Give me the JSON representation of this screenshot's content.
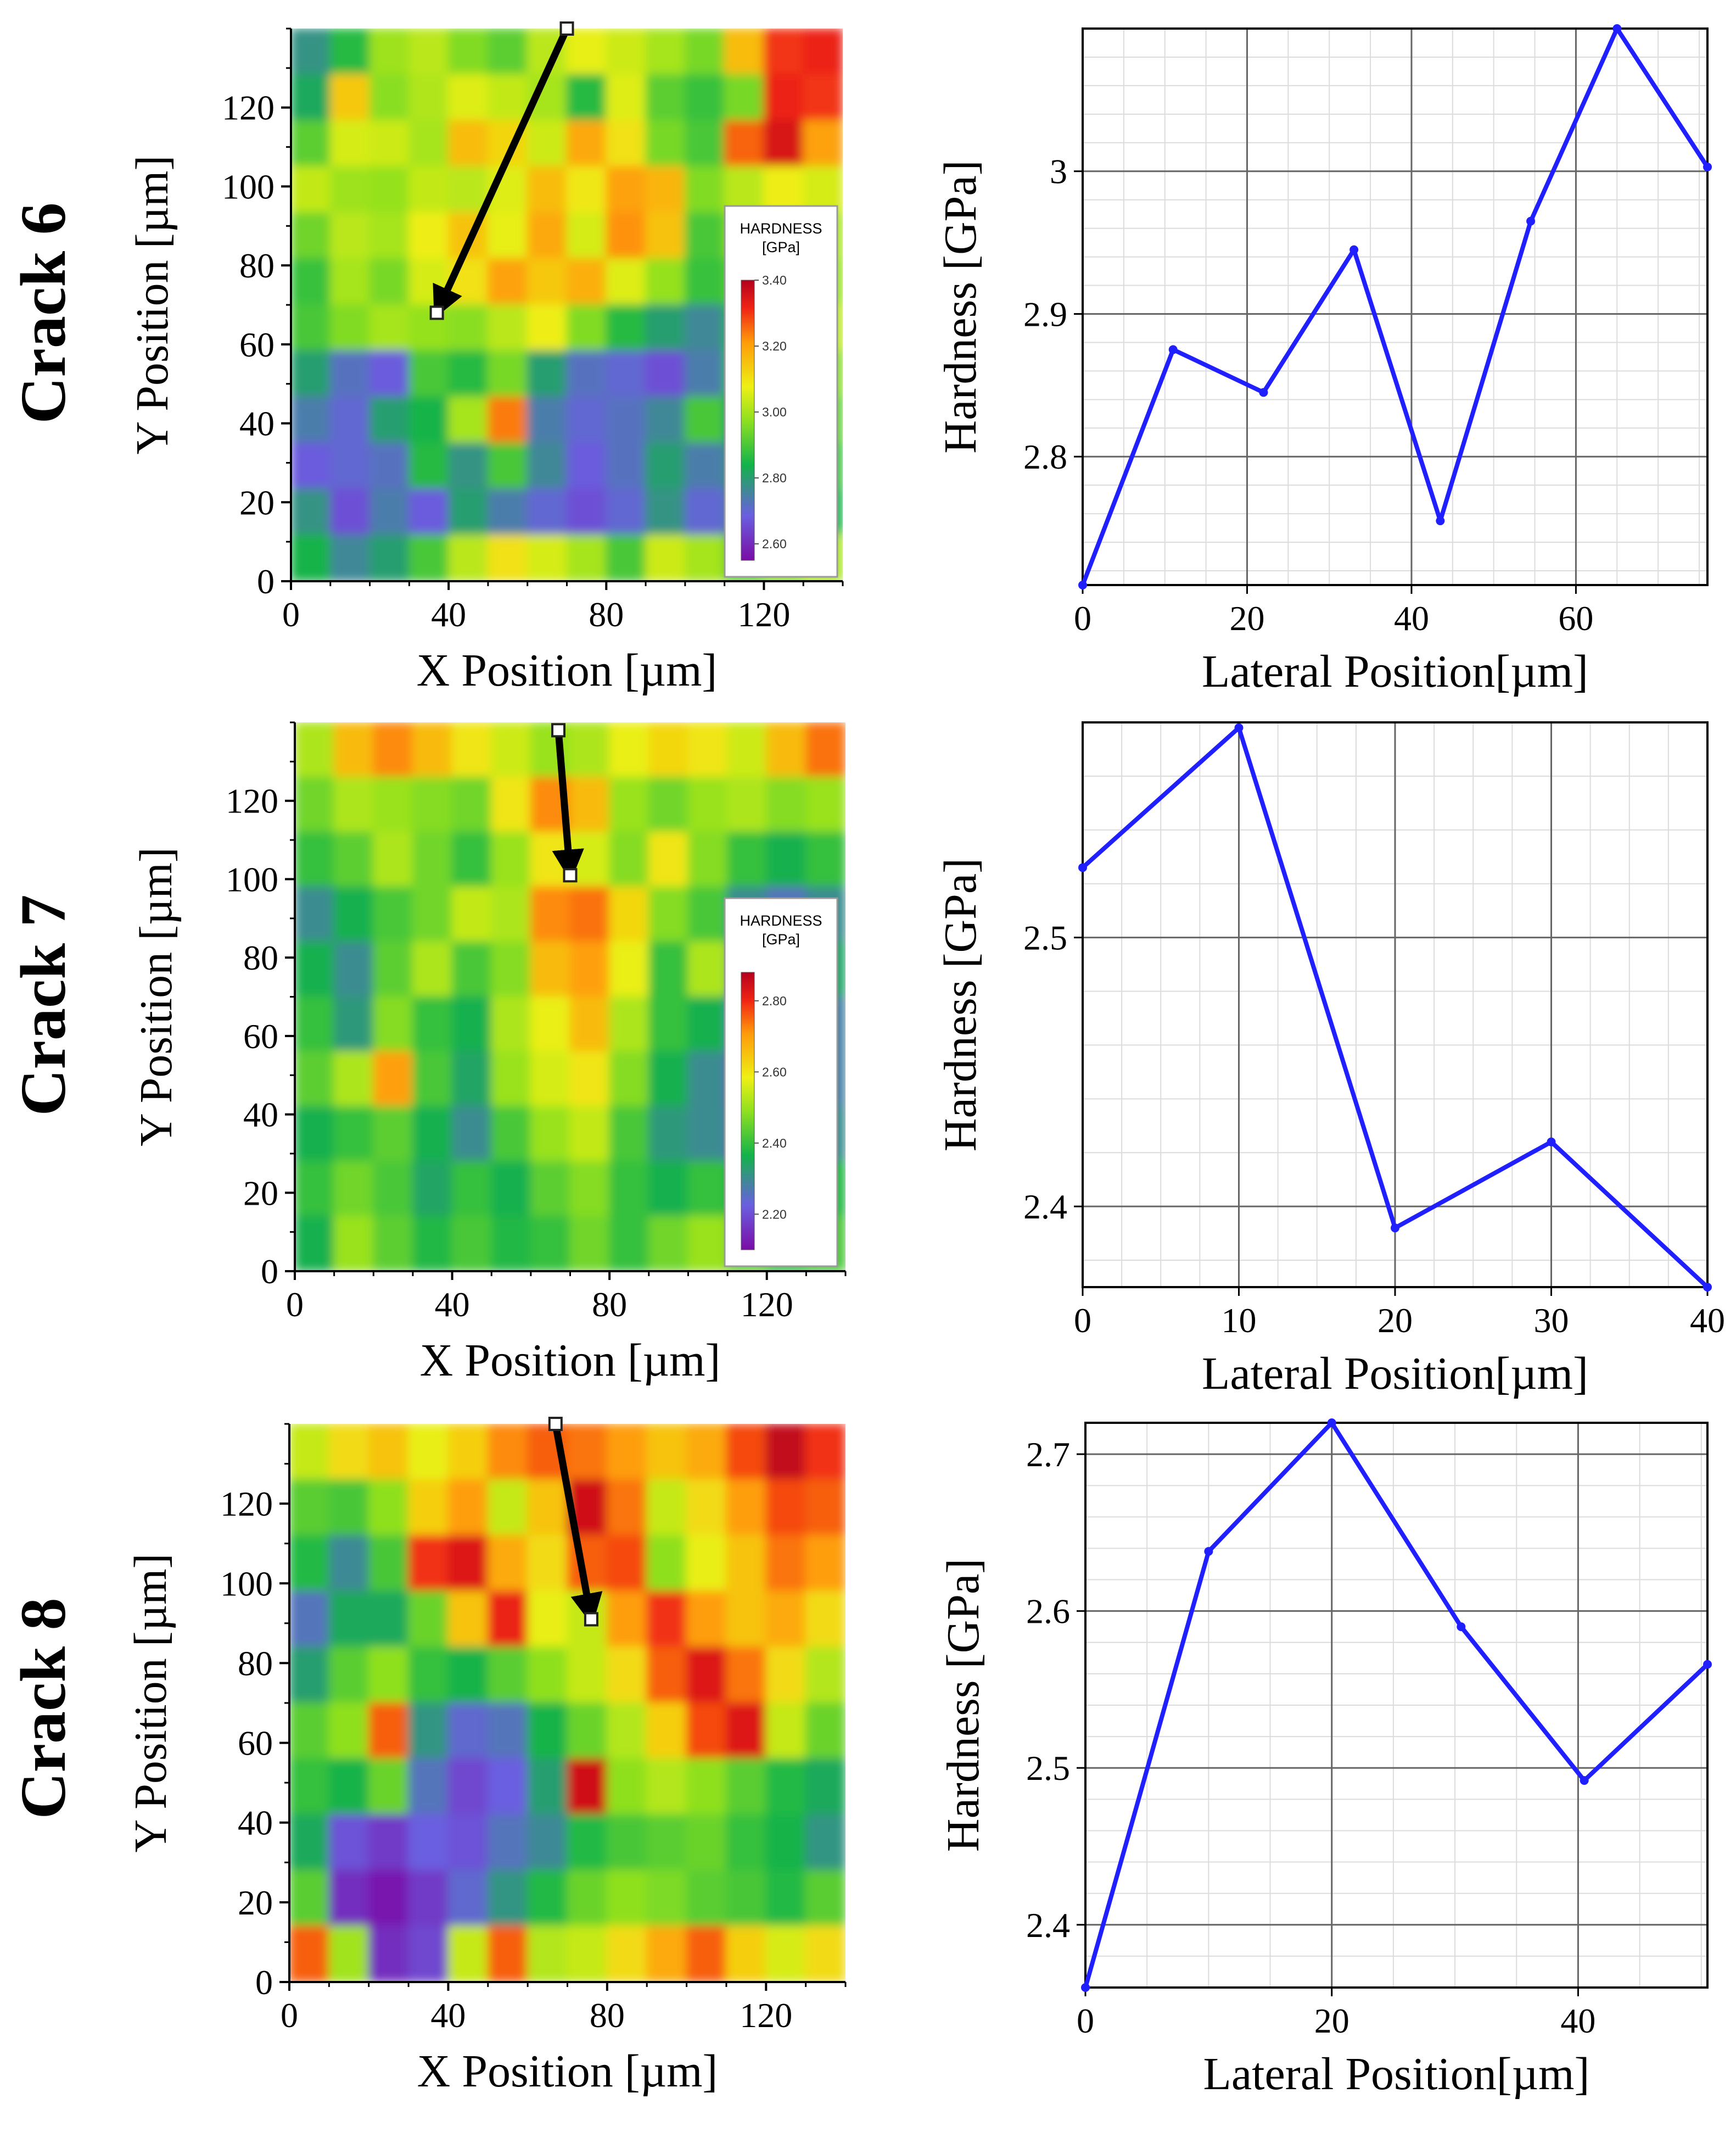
{
  "chart_data": [
    {
      "type": "heatmap",
      "panel_label": "Crack 6",
      "xlabel": "X Position [µm]",
      "ylabel": "Y Position [µm]",
      "xlim": [
        0,
        140
      ],
      "ylim": [
        0,
        140
      ],
      "xticks": [
        0,
        40,
        80,
        120
      ],
      "yticks": [
        0,
        20,
        40,
        60,
        80,
        100,
        120
      ],
      "grid": [
        [
          2.78,
          2.86,
          2.99,
          3.02,
          2.96,
          2.92,
          3.02,
          3.07,
          3.04,
          3.0,
          2.95,
          3.16,
          3.3,
          3.32
        ],
        [
          2.82,
          3.14,
          2.97,
          3.01,
          3.06,
          3.03,
          3.0,
          2.86,
          3.06,
          2.92,
          2.88,
          2.95,
          3.32,
          3.3
        ],
        [
          2.92,
          3.05,
          3.04,
          3.0,
          3.16,
          3.12,
          3.04,
          3.19,
          3.1,
          2.95,
          2.9,
          3.26,
          3.35,
          3.2
        ],
        [
          3.03,
          2.99,
          2.98,
          3.03,
          3.02,
          3.06,
          3.16,
          3.09,
          3.2,
          3.17,
          2.96,
          3.02,
          3.08,
          3.05
        ],
        [
          2.94,
          3.02,
          3.0,
          3.08,
          3.15,
          3.07,
          3.19,
          3.05,
          3.22,
          3.15,
          2.9,
          2.97,
          3.04,
          3.0
        ],
        [
          2.88,
          3.0,
          2.95,
          3.05,
          3.1,
          3.2,
          3.14,
          3.18,
          3.06,
          2.98,
          2.88,
          2.92,
          3.0,
          2.98
        ],
        [
          2.9,
          2.96,
          3.0,
          2.98,
          2.97,
          3.02,
          3.08,
          2.96,
          2.86,
          2.8,
          2.76,
          2.86,
          2.95,
          3.02
        ],
        [
          2.8,
          2.72,
          2.68,
          2.9,
          2.86,
          2.95,
          2.8,
          2.72,
          2.7,
          2.66,
          2.74,
          2.88,
          2.92,
          2.96
        ],
        [
          2.74,
          2.7,
          2.8,
          2.84,
          3.0,
          3.24,
          2.74,
          2.7,
          2.72,
          2.76,
          2.9,
          2.8,
          2.86,
          2.92
        ],
        [
          2.68,
          2.7,
          2.72,
          2.86,
          2.78,
          2.9,
          2.76,
          2.68,
          2.72,
          2.8,
          2.74,
          2.78,
          2.84,
          2.88
        ],
        [
          2.78,
          2.66,
          2.74,
          2.68,
          2.8,
          2.74,
          2.7,
          2.66,
          2.7,
          2.78,
          2.7,
          2.74,
          2.8,
          2.84
        ],
        [
          2.84,
          2.76,
          2.8,
          2.9,
          3.02,
          3.1,
          3.05,
          3.0,
          2.9,
          3.04,
          3.0,
          2.92,
          2.96,
          3.0
        ]
      ],
      "arrow": {
        "from": [
          70,
          140
        ],
        "to": [
          37,
          68
        ]
      },
      "colorbar": {
        "title": "HARDNESS",
        "unit": "[GPa]",
        "ticks": [
          "3.40",
          "3.20",
          "3.00",
          "2.80",
          "2.60"
        ],
        "min": 2.55,
        "max": 3.4
      }
    },
    {
      "type": "line",
      "panel_label": "Crack 6",
      "xlabel": "Lateral Position[µm]",
      "ylabel": "Hardness [GPa]",
      "xlim": [
        0,
        76
      ],
      "ylim": [
        2.71,
        3.1
      ],
      "xticks": [
        0,
        20,
        40,
        60
      ],
      "yticks": [
        "2.8",
        "2.9",
        "3"
      ],
      "x": [
        0,
        11,
        22,
        33,
        43.5,
        54.5,
        65,
        76
      ],
      "y": [
        2.71,
        2.875,
        2.845,
        2.945,
        2.755,
        2.965,
        3.1,
        3.003
      ],
      "color": "#1f1fff"
    },
    {
      "type": "heatmap",
      "panel_label": "Crack 7",
      "xlabel": "X Position [µm]",
      "ylabel": "Y Position [µm]",
      "xlim": [
        0,
        140
      ],
      "ylim": [
        0,
        140
      ],
      "xticks": [
        0,
        40,
        80,
        120
      ],
      "yticks": [
        0,
        20,
        40,
        60,
        80,
        100,
        120
      ],
      "grid": [
        [
          2.52,
          2.66,
          2.72,
          2.66,
          2.6,
          2.55,
          2.5,
          2.52,
          2.58,
          2.62,
          2.6,
          2.55,
          2.66,
          2.74
        ],
        [
          2.46,
          2.52,
          2.5,
          2.48,
          2.46,
          2.6,
          2.72,
          2.66,
          2.5,
          2.46,
          2.5,
          2.52,
          2.48,
          2.5
        ],
        [
          2.4,
          2.44,
          2.52,
          2.46,
          2.4,
          2.5,
          2.6,
          2.56,
          2.48,
          2.6,
          2.48,
          2.4,
          2.36,
          2.4
        ],
        [
          2.3,
          2.36,
          2.42,
          2.46,
          2.54,
          2.52,
          2.72,
          2.74,
          2.62,
          2.48,
          2.42,
          2.3,
          2.26,
          2.3
        ],
        [
          2.36,
          2.3,
          2.44,
          2.52,
          2.42,
          2.48,
          2.66,
          2.7,
          2.58,
          2.4,
          2.52,
          2.34,
          2.28,
          2.34
        ],
        [
          2.4,
          2.32,
          2.48,
          2.4,
          2.36,
          2.52,
          2.58,
          2.66,
          2.52,
          2.4,
          2.36,
          2.24,
          2.2,
          2.28
        ],
        [
          2.44,
          2.52,
          2.7,
          2.42,
          2.34,
          2.5,
          2.56,
          2.6,
          2.48,
          2.36,
          2.3,
          2.2,
          2.16,
          2.28
        ],
        [
          2.36,
          2.4,
          2.44,
          2.36,
          2.3,
          2.42,
          2.5,
          2.54,
          2.42,
          2.32,
          2.3,
          2.24,
          2.2,
          2.3
        ],
        [
          2.4,
          2.46,
          2.42,
          2.34,
          2.4,
          2.36,
          2.44,
          2.48,
          2.4,
          2.36,
          2.4,
          2.36,
          2.34,
          2.38
        ],
        [
          2.36,
          2.5,
          2.44,
          2.38,
          2.42,
          2.38,
          2.4,
          2.46,
          2.4,
          2.46,
          2.5,
          2.44,
          2.4,
          2.42
        ]
      ],
      "arrow": {
        "from": [
          67,
          138
        ],
        "to": [
          70,
          101
        ]
      },
      "colorbar": {
        "title": "HARDNESS",
        "unit": "[GPa]",
        "ticks": [
          "2.80",
          "2.60",
          "2.40",
          "2.20"
        ],
        "min": 2.1,
        "max": 2.88
      }
    },
    {
      "type": "line",
      "panel_label": "Crack 7",
      "xlabel": "Lateral Position[µm]",
      "ylabel": "Hardness [GPa]",
      "xlim": [
        0,
        40
      ],
      "ylim": [
        2.37,
        2.58
      ],
      "xticks": [
        0,
        10,
        20,
        30,
        40
      ],
      "yticks": [
        "2.4",
        "2.5"
      ],
      "x": [
        0,
        10,
        20,
        30,
        40
      ],
      "y": [
        2.526,
        2.578,
        2.392,
        2.424,
        2.37
      ],
      "color": "#1f1fff"
    },
    {
      "type": "heatmap",
      "panel_label": "Crack 8",
      "xlabel": "X Position [µm]",
      "ylabel": "Y Position [µm]",
      "xlim": [
        0,
        140
      ],
      "ylim": [
        0,
        140
      ],
      "xticks": [
        0,
        40,
        80,
        120
      ],
      "yticks": [
        0,
        20,
        40,
        60,
        80,
        100,
        120
      ],
      "grid": [
        [
          2.62,
          2.7,
          2.74,
          2.66,
          2.72,
          2.82,
          2.86,
          2.84,
          2.8,
          2.74,
          2.78,
          2.88,
          2.98,
          2.9
        ],
        [
          2.5,
          2.48,
          2.56,
          2.72,
          2.8,
          2.62,
          2.74,
          2.96,
          2.84,
          2.62,
          2.7,
          2.8,
          2.88,
          2.86
        ],
        [
          2.44,
          2.34,
          2.48,
          2.9,
          2.94,
          2.78,
          2.7,
          2.86,
          2.88,
          2.56,
          2.66,
          2.74,
          2.84,
          2.8
        ],
        [
          2.3,
          2.4,
          2.4,
          2.52,
          2.74,
          2.92,
          2.66,
          2.62,
          2.8,
          2.9,
          2.8,
          2.74,
          2.78,
          2.7
        ],
        [
          2.38,
          2.5,
          2.56,
          2.46,
          2.42,
          2.5,
          2.56,
          2.62,
          2.7,
          2.86,
          2.94,
          2.84,
          2.7,
          2.6
        ],
        [
          2.5,
          2.56,
          2.86,
          2.36,
          2.28,
          2.3,
          2.42,
          2.52,
          2.6,
          2.72,
          2.88,
          2.94,
          2.62,
          2.52
        ],
        [
          2.46,
          2.42,
          2.52,
          2.3,
          2.22,
          2.26,
          2.38,
          2.96,
          2.56,
          2.6,
          2.56,
          2.5,
          2.44,
          2.4
        ],
        [
          2.4,
          2.24,
          2.2,
          2.26,
          2.24,
          2.3,
          2.34,
          2.44,
          2.48,
          2.5,
          2.52,
          2.46,
          2.42,
          2.36
        ],
        [
          2.5,
          2.18,
          2.14,
          2.2,
          2.28,
          2.36,
          2.44,
          2.52,
          2.56,
          2.54,
          2.5,
          2.48,
          2.44,
          2.5
        ],
        [
          2.86,
          2.58,
          2.18,
          2.22,
          2.62,
          2.86,
          2.6,
          2.62,
          2.7,
          2.78,
          2.86,
          2.72,
          2.64,
          2.7
        ]
      ],
      "arrow": {
        "from": [
          67,
          140
        ],
        "to": [
          76,
          91
        ]
      }
    },
    {
      "type": "line",
      "panel_label": "Crack 8",
      "xlabel": "Lateral Position[µm]",
      "ylabel": "Hardness [GPa]",
      "xlim": [
        0,
        50.5
      ],
      "ylim": [
        2.36,
        2.72
      ],
      "xticks": [
        0,
        20,
        40
      ],
      "yticks": [
        "2.4",
        "2.5",
        "2.6",
        "2.7"
      ],
      "x": [
        0,
        10,
        20,
        30.5,
        40.5,
        50.5
      ],
      "y": [
        2.36,
        2.638,
        2.72,
        2.59,
        2.492,
        2.566
      ],
      "color": "#1f1fff"
    }
  ]
}
